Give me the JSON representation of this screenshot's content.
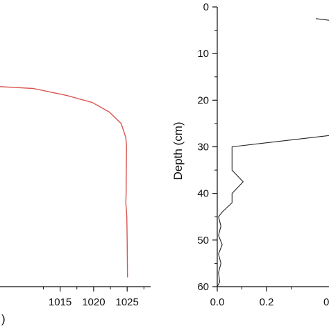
{
  "chart_data": [
    {
      "type": "line",
      "panel": "left",
      "xlim": [
        1005,
        1028.5
      ],
      "ylim": [
        0,
        60
      ],
      "y_inverted": true,
      "xticks": [
        1015,
        1020,
        1025
      ],
      "tick_labels": [
        "1015",
        "1020",
        "1025"
      ],
      "xlabel_fragment": ")",
      "series": [
        {
          "color": "#d9534f",
          "x": [
            1005,
            1011.0,
            1016.0,
            1019.8,
            1022.3,
            1024.1,
            1024.8,
            1024.9,
            1024.85,
            1024.8,
            1024.95,
            1025.0,
            1025.05
          ],
          "y": [
            17,
            17.5,
            19.0,
            20.5,
            22.5,
            25.0,
            28.0,
            30.0,
            40.0,
            42.0,
            45.0,
            50.0,
            58.0
          ]
        }
      ]
    },
    {
      "type": "line",
      "panel": "right",
      "xlim": [
        -0.05,
        0.55
      ],
      "ylim": [
        0,
        60
      ],
      "y_inverted": true,
      "xticks": [
        0.0,
        0.2
      ],
      "tick_labels": [
        "0.0",
        "0.2"
      ],
      "partial_tick_label": "0",
      "yticks": [
        0,
        10,
        20,
        30,
        40,
        50,
        60
      ],
      "ytick_labels": [
        "0",
        "10",
        "20",
        "30",
        "40",
        "50",
        "60"
      ],
      "ylabel": "Depth (cm)",
      "series": [
        {
          "color": "#222222",
          "x": [
            0.4,
            0.55
          ],
          "y": [
            2.5,
            3.5
          ]
        },
        {
          "color": "#222222",
          "x": [
            0.55,
            0.06,
            0.06,
            0.06,
            0.105,
            0.06,
            0.06,
            0.02,
            0.005,
            0.015,
            0.005,
            0.02,
            0.005,
            0.015,
            0.005,
            0.01,
            0.0
          ],
          "y": [
            27.0,
            30.0,
            33.0,
            35.0,
            37.5,
            40.0,
            42.0,
            44.0,
            45.0,
            47.0,
            49.0,
            51.0,
            53.0,
            55.0,
            57.0,
            59.0,
            60.0
          ]
        }
      ]
    }
  ]
}
